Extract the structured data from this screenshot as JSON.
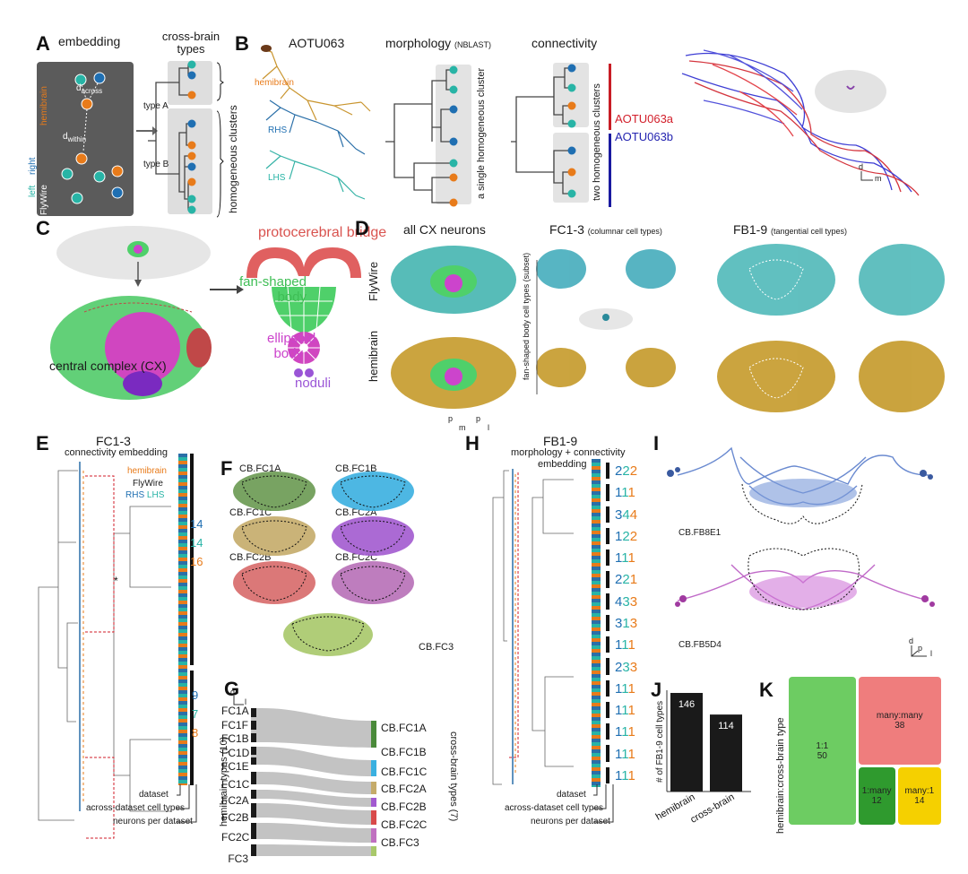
{
  "colors": {
    "hemibrain": "#e87b1a",
    "rhs": "#1f6fb2",
    "lhs": "#28b4a6",
    "aotu_a": "#d21e2a",
    "aotu_b": "#2323b0",
    "pb": "#e06060",
    "fsb": "#4fd06a",
    "eb": "#cc44cc",
    "noduli": "#9a55d6",
    "bar": "#1a1a1a",
    "k_11": "#6dcc62",
    "k_mm": "#ef7d7d",
    "k_1m": "#2f9a2e",
    "k_m1": "#f5d000"
  },
  "panelA": {
    "label": "A",
    "title_embedding": "embedding",
    "title_crossbrain": "cross-brain types",
    "hemibrain": "hemibrain",
    "flywire": "FlyWire",
    "left": "left",
    "right": "right",
    "d_across": "d",
    "d_across_sub": "across",
    "d_within": "d",
    "d_within_sub": "within",
    "type_a": "type A",
    "type_b": "type B",
    "homogeneous_clusters": "homogeneous clusters"
  },
  "panelB": {
    "label": "B",
    "neuron": "AOTU063",
    "hemibrain": "hemibrain",
    "rhs": "RHS",
    "lhs": "LHS",
    "morphology": "morphology",
    "nblast": "(NBLAST)",
    "single_cluster": "a single homogeneous cluster",
    "connectivity": "connectivity",
    "two_clusters": "two homogeneous clusters",
    "type_a": "AOTU063a",
    "type_b": "AOTU063b",
    "axis_d": "d",
    "axis_m": "m"
  },
  "panelC": {
    "label": "C",
    "pb": "protocerebral bridge",
    "fsb1": "fan-shaped",
    "fsb2": "body",
    "eb1": "ellipsoid",
    "eb2": "body",
    "noduli": "noduli",
    "cx": "central complex (CX)"
  },
  "panelD": {
    "label": "D",
    "all_cx": "all CX neurons",
    "fc_title": "FC1-3",
    "fc_sub": "(columnar cell types)",
    "fb_title": "FB1-9",
    "fb_sub": "(tangential cell types)",
    "flywire": "FlyWire",
    "hemibrain": "hemibrain",
    "side_note": "fan-shaped body cell types (subset)",
    "ax_p": "p",
    "ax_m": "m",
    "ax_l": "l"
  },
  "panelE": {
    "label": "E",
    "title": "FC1-3",
    "subtitle": "connectivity embedding",
    "legend_hemibrain": "hemibrain",
    "legend_flywire": "FlyWire",
    "legend_rhs": "RHS",
    "legend_lhs": "LHS",
    "counts_top": [
      "14",
      "14",
      "16"
    ],
    "counts_bottom": [
      "9",
      "7",
      "8"
    ],
    "footer": [
      "dataset",
      "across-dataset cell types",
      "neurons per dataset"
    ],
    "asterisk": "*"
  },
  "panelF": {
    "label": "F",
    "types": [
      "CB.FC1A",
      "CB.FC1B",
      "CB.FC1C",
      "CB.FC2A",
      "CB.FC2B",
      "CB.FC2C",
      "CB.FC3"
    ],
    "ax_d": "d",
    "ax_l": "l"
  },
  "panelG": {
    "label": "G",
    "left_types": [
      "FC1A",
      "FC1F",
      "FC1B",
      "FC1D",
      "FC1E",
      "FC1C",
      "FC2A",
      "FC2B",
      "FC2C",
      "FC3"
    ],
    "right_types": [
      "CB.FC1A",
      "CB.FC1B",
      "CB.FC1C",
      "CB.FC2A",
      "CB.FC2B",
      "CB.FC2C",
      "CB.FC3"
    ],
    "left_axis": "hemibrain types (10)",
    "right_axis": "cross-brain types (7)"
  },
  "panelH": {
    "label": "H",
    "title": "FB1-9",
    "subtitle": "morphology + connectivity",
    "subtitle2": "embedding",
    "rows": [
      [
        "2",
        "2",
        "2"
      ],
      [
        "1",
        "1",
        "1"
      ],
      [
        "3",
        "4",
        "4"
      ],
      [
        "1",
        "2",
        "2"
      ],
      [
        "1",
        "1",
        "1"
      ],
      [
        "2",
        "2",
        "1"
      ],
      [
        "4",
        "3",
        "3"
      ],
      [
        "3",
        "1",
        "3"
      ],
      [
        "1",
        "1",
        "1"
      ],
      [
        "2",
        "3",
        "3"
      ],
      [
        "1",
        "1",
        "1"
      ],
      [
        "1",
        "1",
        "1"
      ],
      [
        "1",
        "1",
        "1"
      ],
      [
        "1",
        "1",
        "1"
      ],
      [
        "1",
        "1",
        "1"
      ]
    ],
    "footer": [
      "dataset",
      "across-dataset cell types",
      "neurons per dataset"
    ]
  },
  "panelI": {
    "label": "I",
    "top": "CB.FB8E1",
    "bottom": "CB.FB5D4",
    "ax_d": "d",
    "ax_p": "p",
    "ax_l": "l"
  },
  "panelJ": {
    "label": "J",
    "ylabel": "# of FB1-9 cell types",
    "chart_data": {
      "type": "bar",
      "categories": [
        "hemibrain",
        "cross-brain"
      ],
      "values": [
        146,
        114
      ],
      "ylabel": "# of FB1-9 cell types",
      "ylim": [
        0,
        150
      ]
    }
  },
  "panelK": {
    "label": "K",
    "ylabel": "hemibrain:cross-brain type",
    "chart_data": {
      "type": "treemap",
      "categories": [
        "1:1",
        "many:many",
        "1:many",
        "many:1"
      ],
      "values": [
        50,
        38,
        12,
        14
      ]
    }
  }
}
